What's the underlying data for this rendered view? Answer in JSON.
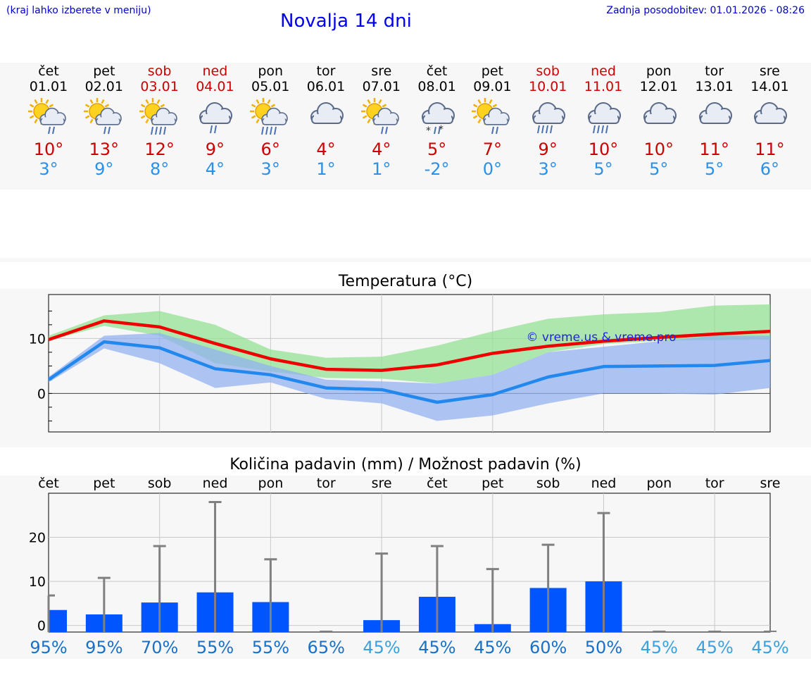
{
  "header": {
    "hint": "(kraj lahko izberete v meniju)",
    "title": "Novalja 14 dni",
    "last_update": "Zadnja posodobitev: 01.01.2026 - 08:26"
  },
  "days": [
    {
      "name": "čet",
      "date": "01.01",
      "weekend": false,
      "icon": "sun-cloud-rain-icon",
      "tmax": "10°",
      "tmin": "3°"
    },
    {
      "name": "pet",
      "date": "02.01",
      "weekend": false,
      "icon": "sun-cloud-rain-icon",
      "tmax": "13°",
      "tmin": "9°"
    },
    {
      "name": "sob",
      "date": "03.01",
      "weekend": true,
      "icon": "sun-cloud-heavy-rain-icon",
      "tmax": "12°",
      "tmin": "8°"
    },
    {
      "name": "ned",
      "date": "04.01",
      "weekend": true,
      "icon": "cloud-rain-icon",
      "tmax": "9°",
      "tmin": "4°"
    },
    {
      "name": "pon",
      "date": "05.01",
      "weekend": false,
      "icon": "sun-cloud-heavy-rain-icon",
      "tmax": "6°",
      "tmin": "3°"
    },
    {
      "name": "tor",
      "date": "06.01",
      "weekend": false,
      "icon": "cloud-icon",
      "tmax": "4°",
      "tmin": "1°"
    },
    {
      "name": "sre",
      "date": "07.01",
      "weekend": false,
      "icon": "sun-cloud-rain-icon",
      "tmax": "4°",
      "tmin": "1°"
    },
    {
      "name": "čet",
      "date": "08.01",
      "weekend": false,
      "icon": "cloud-sleet-icon",
      "tmax": "5°",
      "tmin": "-2°"
    },
    {
      "name": "pet",
      "date": "09.01",
      "weekend": false,
      "icon": "sun-cloud-rain-icon",
      "tmax": "7°",
      "tmin": "0°"
    },
    {
      "name": "sob",
      "date": "10.01",
      "weekend": true,
      "icon": "cloud-heavy-rain-icon",
      "tmax": "9°",
      "tmin": "3°"
    },
    {
      "name": "ned",
      "date": "11.01",
      "weekend": true,
      "icon": "cloud-heavy-rain-icon",
      "tmax": "10°",
      "tmin": "5°"
    },
    {
      "name": "pon",
      "date": "12.01",
      "weekend": false,
      "icon": "cloud-icon",
      "tmax": "10°",
      "tmin": "5°"
    },
    {
      "name": "tor",
      "date": "13.01",
      "weekend": false,
      "icon": "cloud-icon",
      "tmax": "11°",
      "tmin": "5°"
    },
    {
      "name": "sre",
      "date": "14.01",
      "weekend": false,
      "icon": "cloud-icon",
      "tmax": "11°",
      "tmin": "6°"
    }
  ],
  "chart_data": [
    {
      "type": "line",
      "title": "Temperatura (°C)",
      "watermark": "© vreme.us & vreme.pro",
      "ylim": [
        -7,
        18
      ],
      "yticks": [
        0,
        10
      ],
      "ytick_labels": [
        "0",
        "10"
      ],
      "x": [
        1,
        2,
        3,
        4,
        5,
        6,
        7,
        8,
        9,
        10,
        11,
        12,
        13,
        14
      ],
      "series": [
        {
          "name": "max",
          "color": "#ee0000",
          "values": [
            9.8,
            13.2,
            12.1,
            9.1,
            6.3,
            4.4,
            4.2,
            5.2,
            7.3,
            8.6,
            9.5,
            10.2,
            10.8,
            11.3
          ]
        },
        {
          "name": "min",
          "color": "#2288ee",
          "values": [
            2.5,
            9.4,
            8.3,
            4.5,
            3.4,
            1.0,
            0.7,
            -1.6,
            -0.2,
            3.0,
            4.9,
            5.0,
            5.1,
            6.0
          ]
        }
      ],
      "bands": [
        {
          "name": "max-range",
          "color": "#90e090",
          "low": [
            9.6,
            12.3,
            10.5,
            5.5,
            4.0,
            2.8,
            2.7,
            1.8,
            3.4,
            7.5,
            9.0,
            9.6,
            9.7,
            9.8
          ],
          "high": [
            10.5,
            14.2,
            15.0,
            12.5,
            8.0,
            6.5,
            6.7,
            8.7,
            11.3,
            13.6,
            14.4,
            14.8,
            16.0,
            16.2
          ]
        },
        {
          "name": "min-range",
          "color": "#90b0f0",
          "low": [
            2.0,
            8.2,
            5.5,
            1.0,
            2.0,
            -1.0,
            -1.8,
            -5.0,
            -4.0,
            -1.8,
            0.0,
            0.0,
            -0.2,
            1.0
          ],
          "high": [
            3.0,
            10.5,
            11.0,
            8.0,
            5.0,
            2.5,
            2.2,
            1.8,
            3.4,
            7.5,
            8.5,
            9.5,
            10.5,
            10.5
          ]
        }
      ]
    },
    {
      "type": "bar",
      "title": "Količina padavin (mm) / Možnost padavin (%)",
      "categories": [
        "čet",
        "pet",
        "sob",
        "ned",
        "pon",
        "tor",
        "sre",
        "čet",
        "pet",
        "sob",
        "ned",
        "pon",
        "tor",
        "sre"
      ],
      "ylim": [
        -1.5,
        30
      ],
      "yticks": [
        0,
        10,
        20
      ],
      "ytick_labels": [
        "0",
        "10",
        "20"
      ],
      "values": [
        3.5,
        2.5,
        5.2,
        7.5,
        5.3,
        0,
        1.2,
        6.5,
        0.3,
        8.5,
        10,
        0,
        0,
        0
      ],
      "error_high": [
        6.8,
        10.8,
        18,
        28,
        15,
        0,
        16.3,
        18,
        12.8,
        18.3,
        25.5,
        0,
        0,
        0
      ],
      "bar_color": "#0055ff",
      "probability": [
        "95%",
        "95%",
        "70%",
        "55%",
        "55%",
        "65%",
        "45%",
        "45%",
        "45%",
        "60%",
        "50%",
        "45%",
        "45%",
        "45%"
      ],
      "probability_level": [
        "high",
        "high",
        "high",
        "high",
        "high",
        "high",
        "low",
        "high",
        "high",
        "high",
        "high",
        "low",
        "low",
        "low"
      ],
      "probability_colors": {
        "high": "#1870c8",
        "low": "#3aa0e0"
      }
    }
  ]
}
